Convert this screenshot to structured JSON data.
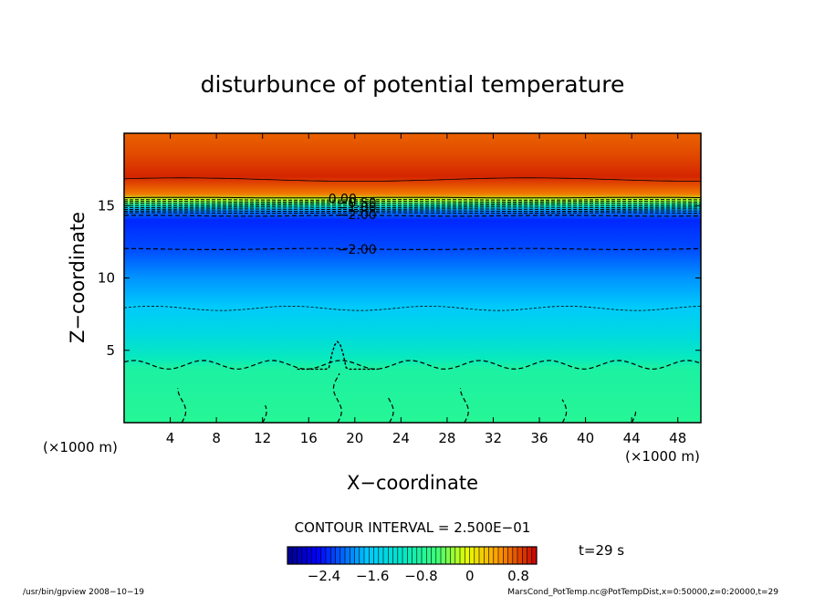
{
  "chart_data": {
    "type": "heatmap",
    "title": "disturbunce of potential temperature",
    "xlabel": "X−coordinate",
    "ylabel": "Z−coordinate",
    "x_unit_left": "(×1000 m)",
    "x_unit_right": "(×1000 m)",
    "xlim": [
      0,
      50
    ],
    "ylim": [
      0,
      20
    ],
    "x_ticks": [
      4,
      8,
      12,
      16,
      20,
      24,
      28,
      32,
      36,
      40,
      44,
      48
    ],
    "y_ticks": [
      5,
      10,
      15
    ],
    "contour_interval_text": "CONTOUR INTERVAL = 2.500E−01",
    "time_label": "t=29 s",
    "colorbar": {
      "range": [
        -3.0,
        1.1
      ],
      "tick_values": [
        -2.4,
        -1.6,
        -0.8,
        0,
        0.8
      ],
      "tick_labels": [
        "−2.4",
        "−1.6",
        "−0.8",
        "0",
        "0.8"
      ]
    },
    "contour_labels": [
      {
        "text": "0.00",
        "x": 17.7,
        "z": 15.5
      },
      {
        "text": "−0.50",
        "x": 18.5,
        "z": 15.2
      },
      {
        "text": "−1.00",
        "x": 18.5,
        "z": 14.9
      },
      {
        "text": "−2.00",
        "x": 18.5,
        "z": 14.4
      },
      {
        "text": "−2.00",
        "x": 18.5,
        "z": 12.0
      }
    ],
    "vertical_profile": [
      {
        "z": 0.0,
        "value": -0.75
      },
      {
        "z": 3.8,
        "value": -0.85
      },
      {
        "z": 4.5,
        "value": -1.05
      },
      {
        "z": 6.0,
        "value": -1.35
      },
      {
        "z": 8.0,
        "value": -1.65
      },
      {
        "z": 10.0,
        "value": -1.9
      },
      {
        "z": 12.0,
        "value": -2.2
      },
      {
        "z": 14.0,
        "value": -2.35
      },
      {
        "z": 14.6,
        "value": -2.0
      },
      {
        "z": 15.0,
        "value": -1.0
      },
      {
        "z": 15.4,
        "value": -0.2
      },
      {
        "z": 15.8,
        "value": 0.6
      },
      {
        "z": 17.0,
        "value": 0.95
      },
      {
        "z": 18.5,
        "value": 0.8
      },
      {
        "z": 20.0,
        "value": 0.7
      }
    ]
  },
  "footer": {
    "left": "/usr/bin/gpview   2008−10−19",
    "right": "MarsCond_PotTemp.nc@PotTempDist,x=0:50000,z=0:20000,t=29"
  }
}
